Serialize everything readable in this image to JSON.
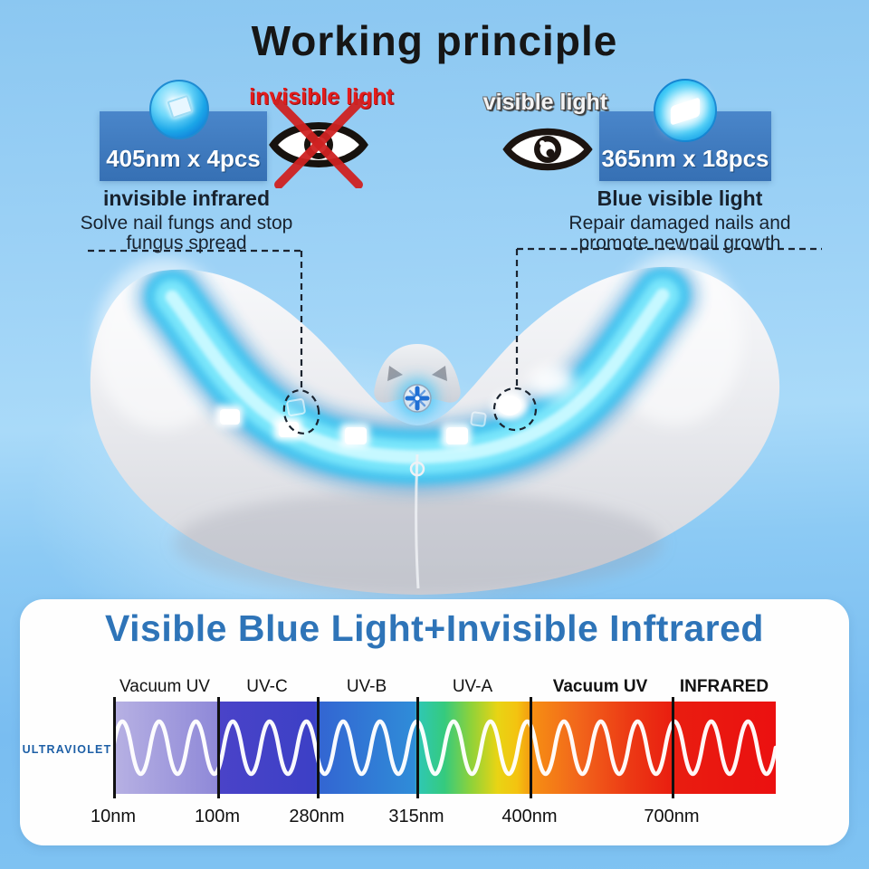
{
  "title": "Working principle",
  "left_unit": {
    "light_label": "invisible light",
    "spec": "405nm x 4pcs",
    "heading": "invisible infrared",
    "desc1": "Solve nail fungs and stop",
    "desc2": "fungus spread"
  },
  "right_unit": {
    "light_label": "visible light",
    "spec": "365nm x 18pcs",
    "heading": "Blue visible light",
    "desc1": "Repair damaged nails and",
    "desc2": "promote newnail growth"
  },
  "panel": {
    "title": "Visible Blue Light+Invisible Inftrared",
    "side_label": "ULTRAVIOLET",
    "segments": [
      "Vacuum UV",
      "UV-C",
      "UV-B",
      "UV-A",
      "Vacuum UV",
      "INFRARED"
    ],
    "wavelengths": [
      "10nm",
      "100m",
      "280nm",
      "315nm",
      "400nm",
      "700nm"
    ]
  },
  "icons": {
    "crossed_eye": "crossed-out-eye-icon",
    "eye": "eye-icon",
    "led_405": "led-chip-photo-icon",
    "led_365": "glowing-led-photo-icon"
  },
  "colors": {
    "background_blue": "#9dd2f6",
    "card_blue": "#3d7cc0",
    "warning_red": "#e31c1c",
    "panel_title_blue": "#2e74b8",
    "ultraviolet_label_blue": "#1d5fa6",
    "device_glow_cyan": "#4fd4f6"
  }
}
